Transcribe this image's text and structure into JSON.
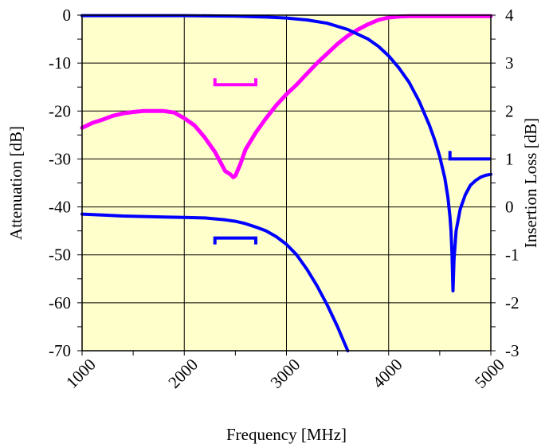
{
  "chart_data": {
    "type": "line",
    "xlabel": "Frequency [MHz]",
    "ylabel_left": "Attenuation [dB]",
    "ylabel_right": "Insertion Loss [dB]",
    "xlim": [
      1000,
      5000
    ],
    "ylim_left": [
      -70,
      0
    ],
    "ylim_right": [
      -3,
      4
    ],
    "x_ticks": [
      "1000",
      "2000",
      "3000",
      "4000",
      "5000"
    ],
    "y_left_ticks": [
      "0",
      "-10",
      "-20",
      "-30",
      "-40",
      "-50",
      "-60",
      "-70"
    ],
    "y_right_ticks": [
      "4",
      "3",
      "2",
      "1",
      "0",
      "-1",
      "-2",
      "-3"
    ],
    "grid": true,
    "plot_background": "#ffffcc",
    "series": [
      {
        "color": "#ff00ff",
        "axis": "left",
        "x": [
          1000,
          1100,
          1200,
          1300,
          1400,
          1500,
          1600,
          1700,
          1800,
          1900,
          2000,
          2100,
          2200,
          2300,
          2350,
          2400,
          2450,
          2480,
          2500,
          2550,
          2600,
          2700,
          2800,
          2900,
          3000,
          3100,
          3200,
          3300,
          3400,
          3500,
          3600,
          3700,
          3800,
          3900,
          4000,
          4100,
          4200,
          4400,
          4600,
          4800,
          5000
        ],
        "y": [
          -23.5,
          -22.5,
          -21.8,
          -21,
          -20.5,
          -20.2,
          -20,
          -20,
          -20,
          -20.3,
          -21.5,
          -23,
          -25.5,
          -28.5,
          -30.5,
          -32.5,
          -33.2,
          -33.8,
          -33.5,
          -31,
          -28,
          -24.5,
          -21.5,
          -18.8,
          -16.5,
          -14.5,
          -12.2,
          -10,
          -8,
          -6,
          -4.3,
          -3,
          -1.9,
          -1,
          -0.5,
          -0.3,
          -0.2,
          -0.2,
          -0.2,
          -0.2,
          -0.2
        ]
      },
      {
        "color": "#0000ff",
        "axis": "left",
        "x": [
          1000,
          1500,
          2000,
          2500,
          2800,
          3000,
          3200,
          3400,
          3600,
          3800,
          3900,
          4000,
          4100,
          4200,
          4300,
          4400,
          4450,
          4500,
          4550,
          4580,
          4600,
          4610,
          4620,
          4630,
          4640,
          4660,
          4700,
          4750,
          4800,
          4850,
          4900,
          4950,
          5000
        ],
        "y": [
          -0.1,
          -0.1,
          -0.1,
          -0.2,
          -0.4,
          -0.6,
          -1,
          -1.7,
          -3,
          -5,
          -6.5,
          -8.5,
          -11,
          -14,
          -18,
          -23,
          -26,
          -29.5,
          -34,
          -38,
          -42,
          -45,
          -50,
          -57.5,
          -51,
          -45,
          -40.5,
          -37.5,
          -35.5,
          -34.5,
          -33.8,
          -33.4,
          -33.2
        ]
      },
      {
        "color": "#0000ff",
        "axis": "right",
        "x": [
          1000,
          1200,
          1400,
          1600,
          1800,
          2000,
          2200,
          2400,
          2500,
          2600,
          2700,
          2800,
          2900,
          3000,
          3100,
          3200,
          3300,
          3400,
          3500,
          3550,
          3600
        ],
        "y": [
          -0.15,
          -0.17,
          -0.19,
          -0.2,
          -0.21,
          -0.22,
          -0.23,
          -0.27,
          -0.3,
          -0.35,
          -0.42,
          -0.5,
          -0.62,
          -0.78,
          -1,
          -1.3,
          -1.65,
          -2.05,
          -2.5,
          -2.75,
          -3
        ]
      }
    ],
    "bracket_marks": [
      {
        "color": "#ff00ff",
        "open": "up",
        "x": [
          2300,
          2700
        ],
        "y": -14.5,
        "axis": "left"
      },
      {
        "color": "#0000ff",
        "open": "down",
        "x": [
          2300,
          2700
        ],
        "y": -46.5,
        "axis": "left"
      },
      {
        "color": "#0000ff",
        "open": "right",
        "x": [
          4600,
          5000
        ],
        "y": -30,
        "axis": "left"
      }
    ]
  }
}
